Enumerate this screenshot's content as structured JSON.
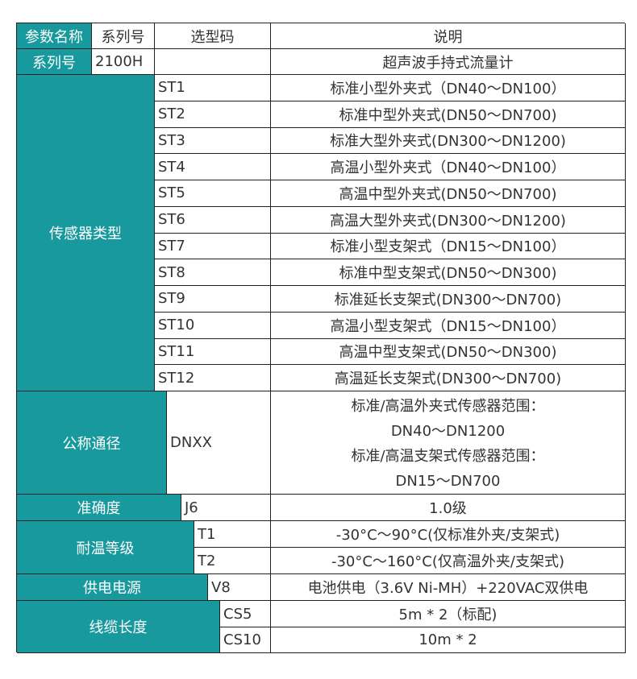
{
  "header": {
    "param": "参数名称",
    "series": "系列号",
    "code": "选型码",
    "desc": "说明"
  },
  "series_row": {
    "label": "系列号",
    "code": "2100H",
    "desc": "超声波手持式流量计"
  },
  "sensor": {
    "label": "传感器类型",
    "items": [
      {
        "code": "ST1",
        "desc": "标准小型外夹式（DN40～DN100）"
      },
      {
        "code": "ST2",
        "desc": "标准中型外夹式(DN50～DN700)"
      },
      {
        "code": "ST3",
        "desc": "标准大型外夹式(DN300～DN1200)"
      },
      {
        "code": "ST4",
        "desc": "高温小型外夹式（DN40～DN100）"
      },
      {
        "code": "ST5",
        "desc": "高温中型外夹式(DN50～DN700)"
      },
      {
        "code": "ST6",
        "desc": "高温大型外夹式(DN300～DN1200)"
      },
      {
        "code": "ST7",
        "desc": "标准小型支架式（DN15～DN100）"
      },
      {
        "code": "ST8",
        "desc": "标准中型支架式(DN50～DN300)"
      },
      {
        "code": "ST9",
        "desc": "标准延长支架式(DN300～DN700)"
      },
      {
        "code": "ST10",
        "desc": "高温小型支架式（DN15～DN100）"
      },
      {
        "code": "ST11",
        "desc": "高温中型支架式(DN50～DN300)"
      },
      {
        "code": "ST12",
        "desc": "高温延长支架式(DN300～DN700)"
      }
    ]
  },
  "diameter": {
    "label": "公称通径",
    "code": "DNXX",
    "lines": [
      "标准/高温外夹式传感器范围：",
      "DN40～DN1200",
      "标准/高温支架式传感器范围：",
      "DN15～DN700"
    ]
  },
  "accuracy": {
    "label": "准确度",
    "code": "J6",
    "desc": "1.0级"
  },
  "temp": {
    "label": "耐温等级",
    "items": [
      {
        "code": "T1",
        "desc": "-30°C～90°C(仅标准外夹/支架式)"
      },
      {
        "code": "T2",
        "desc": "-30°C～160°C(仅高温外夹/支架式)"
      }
    ]
  },
  "power": {
    "label": "供电电源",
    "code": "V8",
    "desc": "电池供电（3.6V Ni-MH）+220VAC双供电"
  },
  "cable": {
    "label": "线缆长度",
    "items": [
      {
        "code": "CS5",
        "desc": "5m * 2（标配)"
      },
      {
        "code": "CS10",
        "desc": "10m * 2"
      }
    ]
  },
  "colors": {
    "teal": "#17999d",
    "border": "#222222"
  }
}
